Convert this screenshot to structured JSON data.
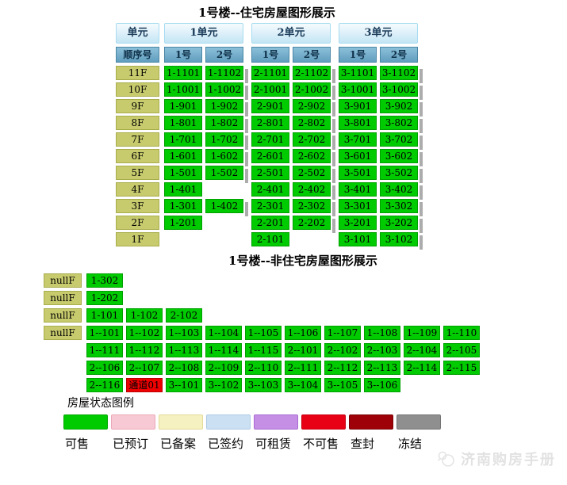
{
  "residential": {
    "title": "1号楼--住宅房屋图形展示",
    "header": {
      "unit_label": "单元",
      "groups": [
        "1单元",
        "2单元",
        "3单元"
      ],
      "seq_label": "顺序号",
      "seq_cols": [
        "1号",
        "2号",
        "1号",
        "2号",
        "1号",
        "2号"
      ]
    },
    "rows": [
      {
        "floor": "11F",
        "cells": [
          "1-1101",
          "1-1102",
          "2-1101",
          "2-1102",
          "3-1101",
          "3-1102"
        ]
      },
      {
        "floor": "10F",
        "cells": [
          "1-1001",
          "1-1002",
          "2-1001",
          "2-1002",
          "3-1001",
          "3-1002"
        ]
      },
      {
        "floor": "9F",
        "cells": [
          "1-901",
          "1-902",
          "2-901",
          "2-902",
          "3-901",
          "3-902"
        ]
      },
      {
        "floor": "8F",
        "cells": [
          "1-801",
          "1-802",
          "2-801",
          "2-802",
          "3-801",
          "3-802"
        ]
      },
      {
        "floor": "7F",
        "cells": [
          "1-701",
          "1-702",
          "2-701",
          "2-702",
          "3-701",
          "3-702"
        ]
      },
      {
        "floor": "6F",
        "cells": [
          "1-601",
          "1-602",
          "2-601",
          "2-602",
          "3-601",
          "3-602"
        ]
      },
      {
        "floor": "5F",
        "cells": [
          "1-501",
          "1-502",
          "2-501",
          "2-502",
          "3-501",
          "3-502"
        ]
      },
      {
        "floor": "4F",
        "cells": [
          "1-401",
          null,
          "2-401",
          "2-402",
          "3-401",
          "3-402"
        ]
      },
      {
        "floor": "3F",
        "cells": [
          "1-301",
          "1-402",
          "2-301",
          "2-302",
          "3-301",
          "3-302"
        ]
      },
      {
        "floor": "2F",
        "cells": [
          "1-201",
          null,
          "2-201",
          "2-202",
          "3-201",
          "3-202"
        ]
      },
      {
        "floor": "1F",
        "cells": [
          null,
          null,
          "2-101",
          null,
          "3-101",
          "3-102"
        ]
      }
    ]
  },
  "nonresidential": {
    "title": "1号楼--非住宅房屋图形展示",
    "rows": [
      {
        "floor": "nullF",
        "cells": [
          "1-302"
        ]
      },
      {
        "floor": "nullF",
        "cells": [
          "1-202"
        ]
      },
      {
        "floor": "nullF",
        "cells": [
          "1-101",
          "1-102",
          "2-102"
        ]
      },
      {
        "floor": "nullF",
        "cells": [
          "1--101",
          "1--102",
          "1--103",
          "1--104",
          "1--105",
          "1--106",
          "1--107",
          "1--108",
          "1--109",
          "1--110"
        ]
      },
      {
        "floor": null,
        "cells": [
          "1--111",
          "1--112",
          "1--113",
          "1--114",
          "1--115",
          "2--101",
          "2--102",
          "2--103",
          "2--104",
          "2--105"
        ]
      },
      {
        "floor": null,
        "cells": [
          "2--106",
          "2--107",
          "2--108",
          "2--109",
          "2--110",
          "2--111",
          "2--112",
          "2--113",
          "2--114",
          "2--115"
        ]
      },
      {
        "floor": null,
        "cells": [
          "2--116",
          {
            "label": "通道01",
            "status": "blocked"
          },
          "3--101",
          "3--102",
          "3--103",
          "3--104",
          "3--105",
          "3--106"
        ]
      }
    ]
  },
  "status_colors": {
    "available": {
      "bg": "#00CB00",
      "border": "#00A000"
    },
    "blocked": {
      "bg": "#EE0000",
      "border": "#BB0000"
    }
  },
  "legend": {
    "title": "房屋状态图例",
    "items": [
      {
        "label": "可售",
        "color": "#00CB00",
        "border": "#00A800"
      },
      {
        "label": "已预订",
        "color": "#F7C9D4",
        "border": "#EBA8B8"
      },
      {
        "label": "已备案",
        "color": "#F5F1C0",
        "border": "#E3DC9A"
      },
      {
        "label": "已签约",
        "color": "#CBE0F2",
        "border": "#AECBE6"
      },
      {
        "label": "可租赁",
        "color": "#C48FE4",
        "border": "#A96BD4"
      },
      {
        "label": "不可售",
        "color": "#E80015",
        "border": "#C40010"
      },
      {
        "label": "查封",
        "color": "#9E0208",
        "border": "#7A0105"
      },
      {
        "label": "冻结",
        "color": "#8F8F8F",
        "border": "#747474"
      }
    ]
  },
  "watermark": {
    "text": "济南购房手册"
  }
}
